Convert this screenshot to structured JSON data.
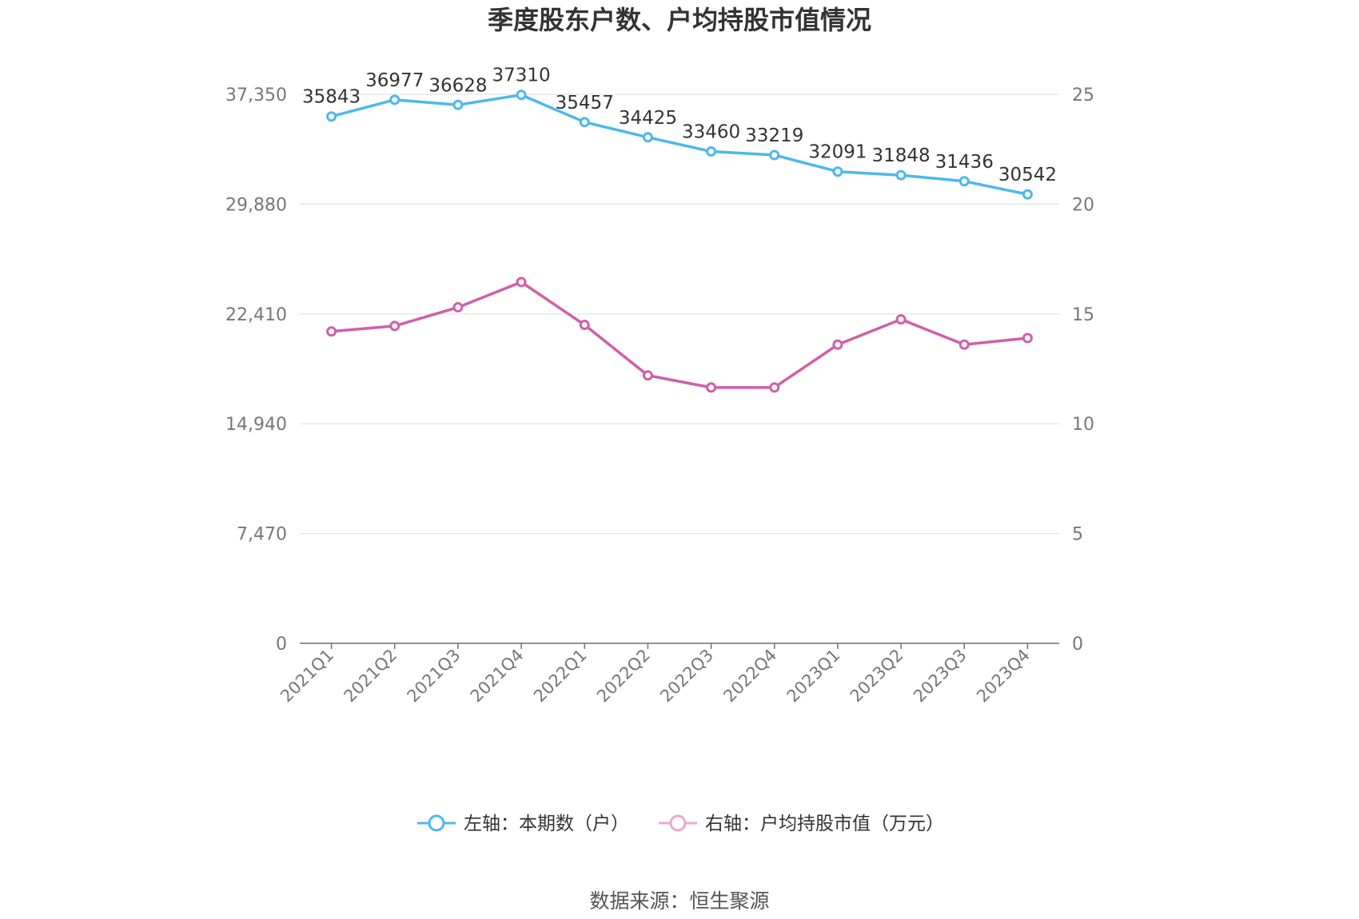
{
  "chart_data": {
    "type": "line",
    "title": "季度股东户数、户均持股市值情况",
    "categories": [
      "2021Q1",
      "2021Q2",
      "2021Q3",
      "2021Q4",
      "2022Q1",
      "2022Q2",
      "2022Q3",
      "2022Q4",
      "2023Q1",
      "2023Q2",
      "2023Q3",
      "2023Q4"
    ],
    "series": [
      {
        "name": "左轴：本期数（户）",
        "axis": "left",
        "color": "#4db8ec",
        "values": [
          35843,
          36977,
          36628,
          37310,
          35457,
          34425,
          33460,
          33219,
          32091,
          31848,
          31436,
          30542
        ],
        "data_labels": [
          "35843",
          "36977",
          "36628",
          "37310",
          "35457",
          "34425",
          "33460",
          "33219",
          "32091",
          "31848",
          "31436",
          "30542"
        ]
      },
      {
        "name": "右轴：户均持股市值（万元）",
        "axis": "right",
        "color": "#d05fa9",
        "legend_color": "#e8a9d0",
        "values": [
          14.2,
          14.45,
          15.3,
          16.45,
          14.5,
          12.2,
          11.65,
          11.65,
          13.6,
          14.75,
          13.6,
          13.9
        ]
      }
    ],
    "left_axis": {
      "min": 0,
      "max": 37350,
      "ticks": [
        "0",
        "7,470",
        "14,940",
        "22,410",
        "29,880",
        "37,350"
      ]
    },
    "right_axis": {
      "min": 0,
      "max": 25,
      "ticks": [
        "0",
        "5",
        "10",
        "15",
        "20",
        "25"
      ]
    },
    "grid": true,
    "legend_position": "bottom"
  },
  "source": "数据来源：恒生聚源"
}
